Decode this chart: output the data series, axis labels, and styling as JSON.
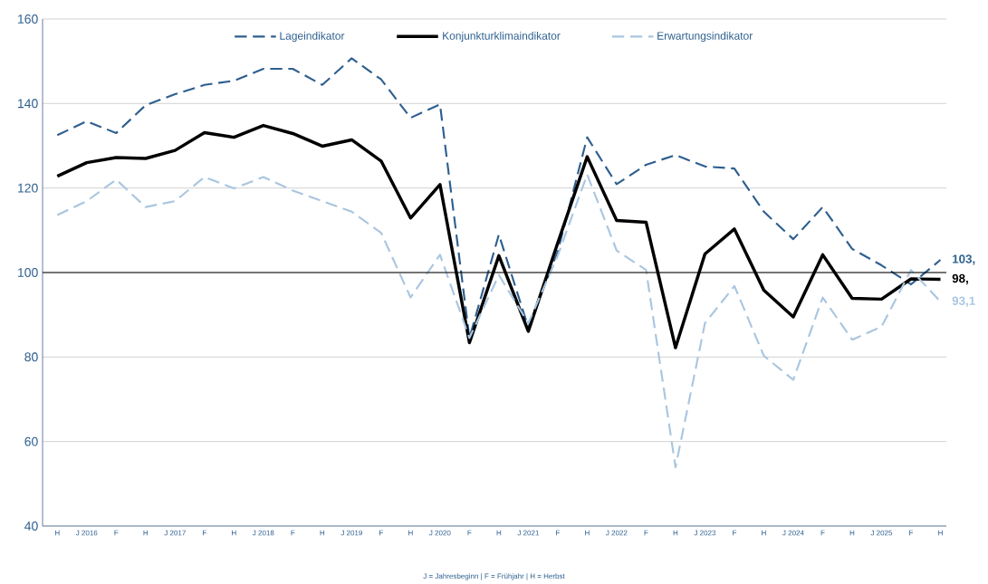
{
  "chart_data": {
    "type": "line",
    "categories": [
      "H",
      "J 2016",
      "F",
      "H",
      "J 2017",
      "F",
      "H",
      "J 2018",
      "F",
      "H",
      "J 2019",
      "F",
      "H",
      "J 2020",
      "F",
      "H",
      "J 2021",
      "F",
      "H",
      "J 2022",
      "F",
      "H",
      "J 2023",
      "F",
      "H",
      "J 2024",
      "F",
      "H",
      "J 2025",
      "F",
      "H"
    ],
    "series": [
      {
        "name": "Lageindikator",
        "color": "#2e5f8f",
        "line_style": "dashed",
        "values": [
          132.5,
          135.8,
          133,
          139.6,
          142.2,
          144.4,
          145.4,
          148.2,
          148.2,
          144.4,
          150.7,
          145.7,
          136.6,
          139.8,
          84.5,
          109,
          87,
          105,
          132,
          120.9,
          125.5,
          127.8,
          125.1,
          124.6,
          114.4,
          107.9,
          115.5,
          105.6,
          101.7,
          97.2,
          103
        ]
      },
      {
        "name": "Konjunkturklimaindikator",
        "color": "#000000",
        "line_style": "solid",
        "values": [
          122.8,
          126,
          127.2,
          127,
          128.9,
          133.1,
          132,
          134.8,
          132.9,
          129.9,
          131.4,
          126.4,
          112.9,
          120.8,
          83.4,
          104,
          86.1,
          107,
          127.4,
          112.3,
          111.9,
          82.2,
          104.4,
          110.3,
          95.8,
          89.5,
          104.2,
          93.9,
          93.7,
          98.5,
          98.4
        ]
      },
      {
        "name": "Erwartungsindikator",
        "color": "#a9c6e0",
        "line_style": "dashed",
        "values": [
          113.6,
          116.9,
          122,
          115.5,
          116.9,
          122.6,
          119.9,
          122.6,
          119.4,
          116.9,
          114.4,
          109.4,
          94.1,
          104.2,
          84.5,
          99.4,
          88,
          104,
          123.2,
          105.2,
          100.6,
          53.9,
          88,
          96.8,
          80.3,
          74.6,
          94.1,
          84.1,
          87.2,
          100.6,
          93.1
        ]
      }
    ],
    "ylim": [
      40,
      160
    ],
    "yticks": [
      40,
      60,
      80,
      100,
      120,
      140,
      160
    ],
    "grid": "y",
    "legend": "top",
    "ref_lines": [
      {
        "axis": "y",
        "value": 100,
        "color": "#000000"
      }
    ],
    "annotations": [
      "103,",
      "98,",
      "93,1",
      "J = Jahresbeginn   |   F = Frühjahr   |   H = Herbst"
    ]
  }
}
